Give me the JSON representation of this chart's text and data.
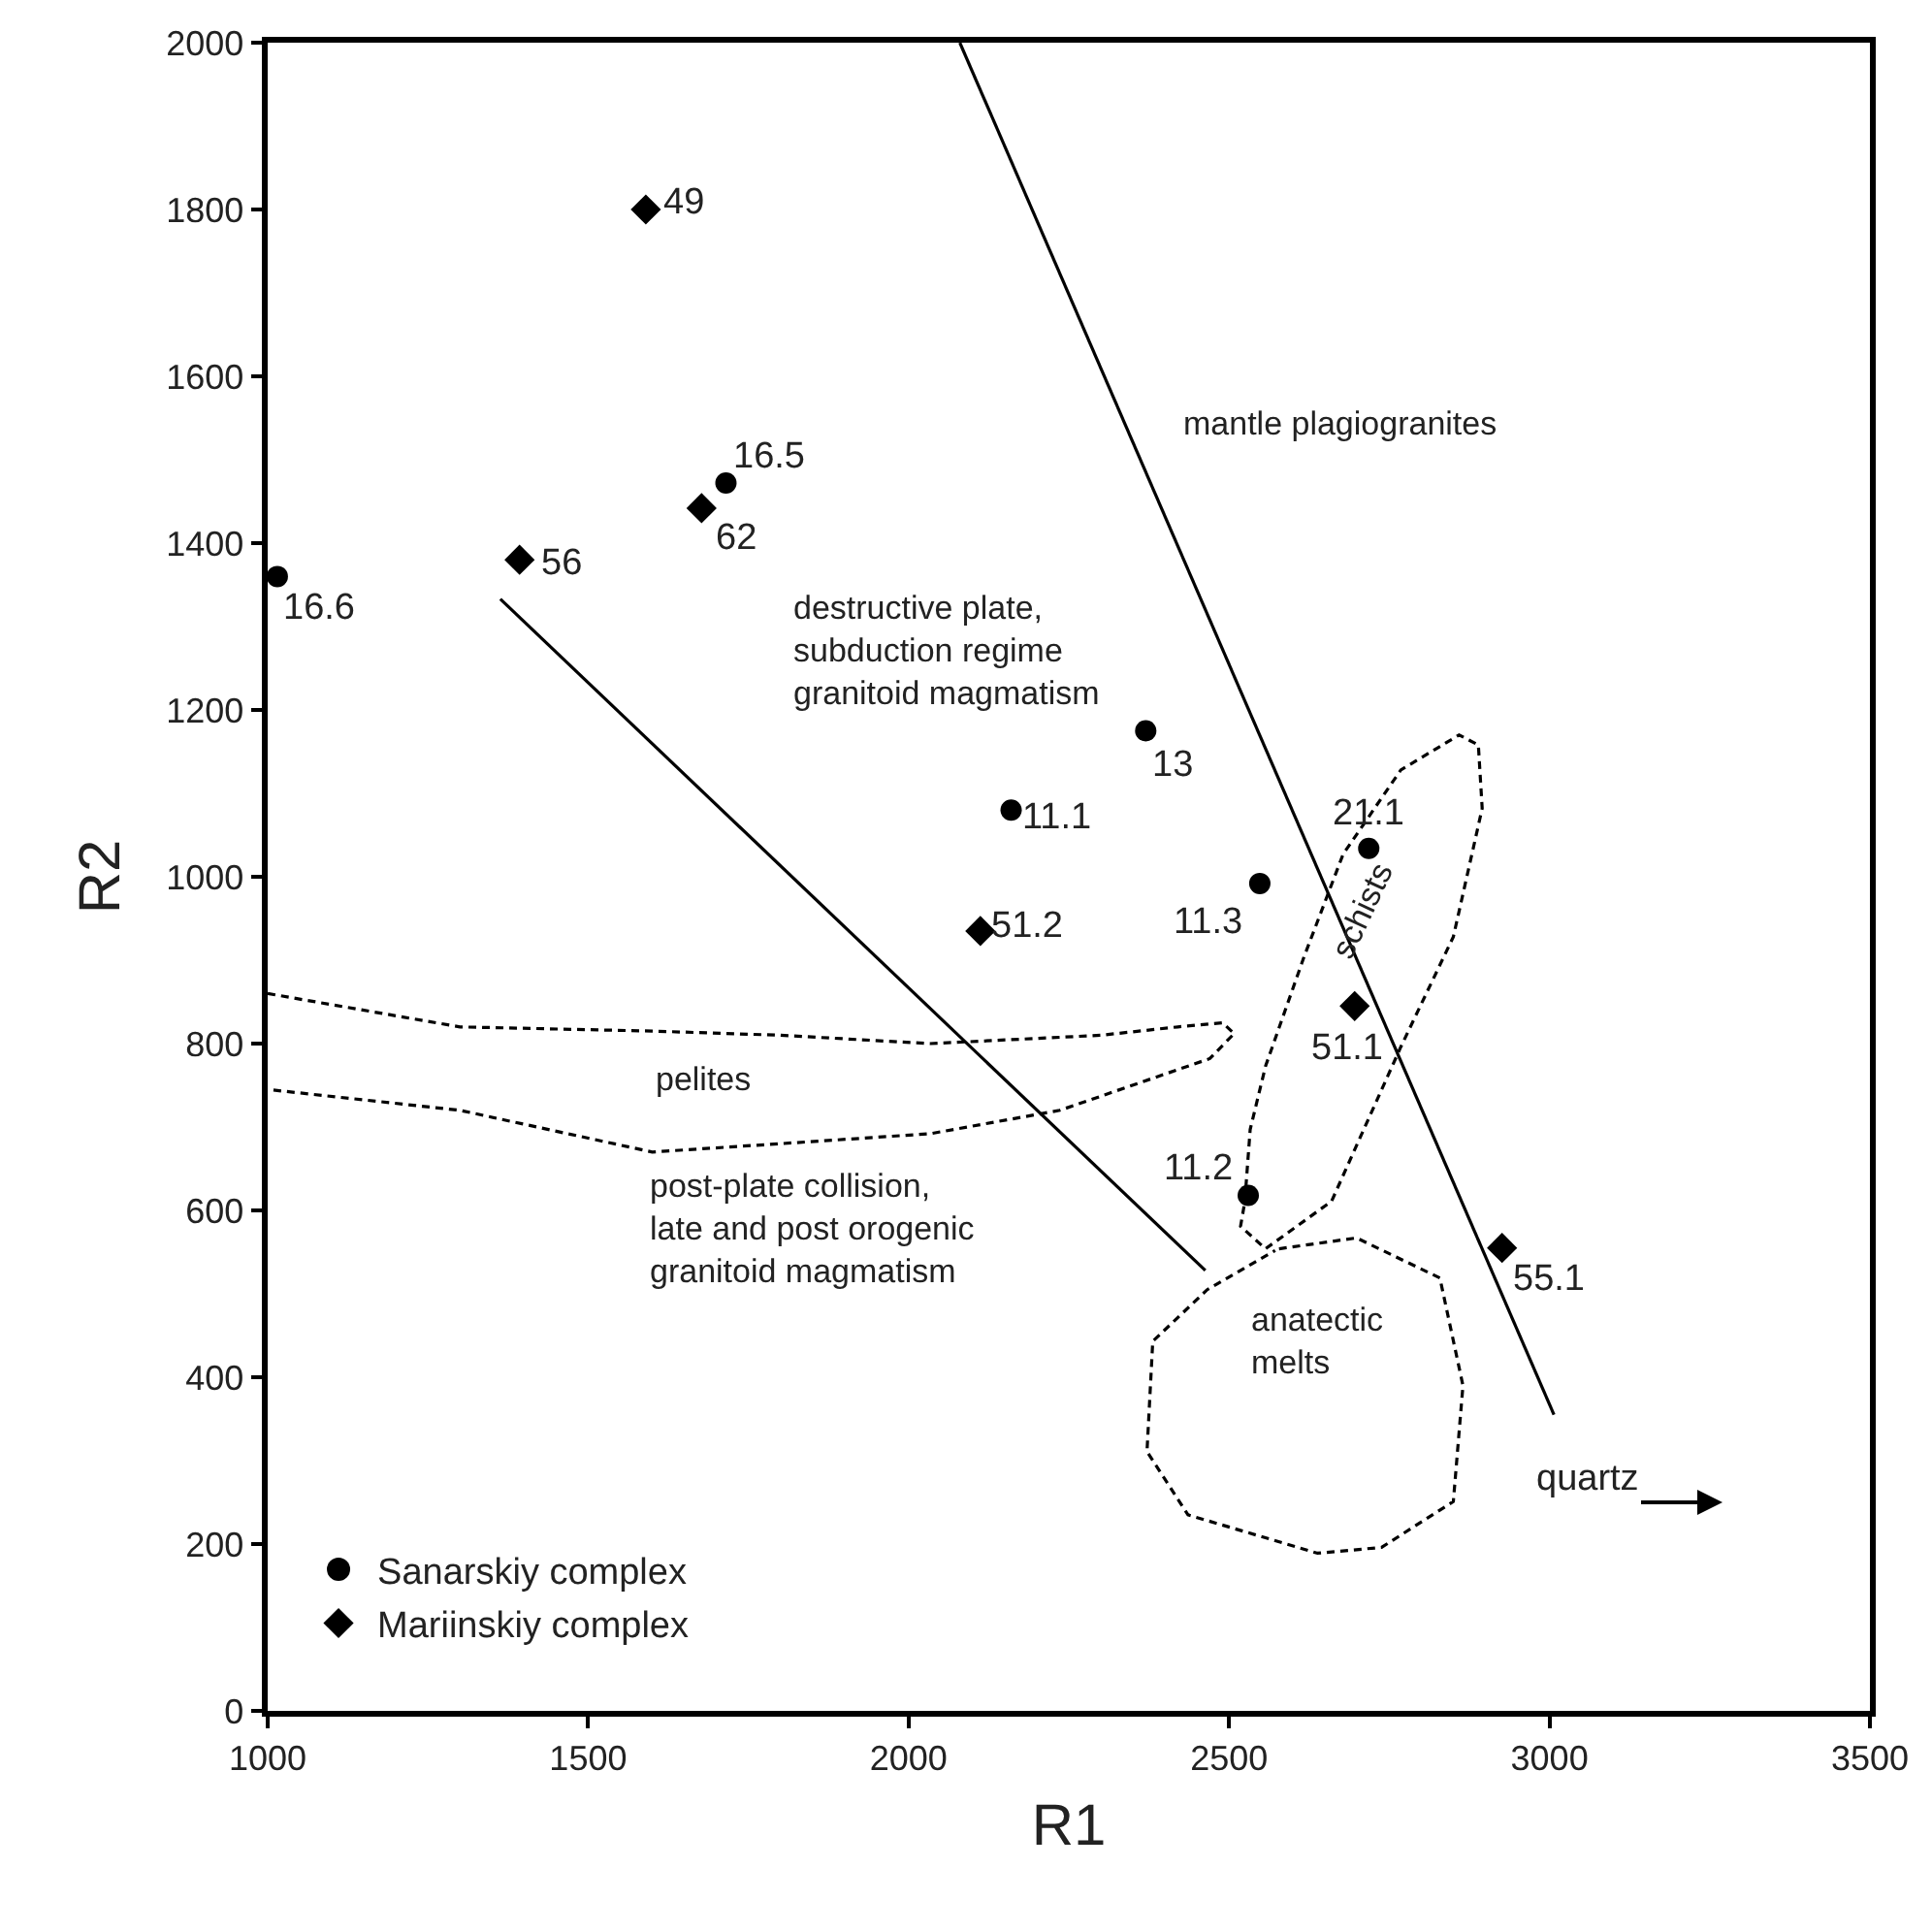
{
  "chart_data": {
    "type": "scatter",
    "xlabel": "R1",
    "ylabel": "R2",
    "xlim": [
      1000,
      3500
    ],
    "xticks": [
      1000,
      1500,
      2000,
      2500,
      3000,
      3500
    ],
    "ylim": [
      0,
      2000
    ],
    "yticks": [
      0,
      200,
      400,
      600,
      800,
      1000,
      1200,
      1400,
      1600,
      1800,
      2000
    ],
    "legend": "bottom left",
    "series": [
      {
        "name": "Sanarskiy complex",
        "color": "#000000",
        "marker": "circle",
        "x": [
          1015,
          1715,
          2370,
          2160,
          2548,
          2718,
          2530
        ],
        "values": [
          1360,
          1472,
          1175,
          1080,
          992,
          1034,
          618
        ]
      },
      {
        "name": "Mariinskiy complex",
        "color": "#000000",
        "marker": "diamond",
        "x": [
          1590,
          1677,
          1393,
          2112,
          2696,
          2926
        ],
        "values": [
          1800,
          1442,
          1380,
          935,
          845,
          555
        ]
      },
      {
        "type": "line",
        "color": "#000000",
        "line_style": "solid",
        "marker": "none",
        "x": [
          2080,
          3007
        ],
        "values": [
          2000,
          355
        ]
      },
      {
        "type": "line",
        "color": "#000000",
        "line_style": "solid",
        "marker": "none",
        "x": [
          1363,
          2463
        ],
        "values": [
          1333,
          528
        ]
      },
      {
        "type": "line",
        "color": "#000000",
        "line_style": "dashed",
        "marker": "none",
        "x": [
          1000,
          1300,
          1600,
          1800,
          2034,
          2300,
          2420,
          2490,
          2508,
          2470,
          2236,
          2034,
          1800,
          1600,
          1300,
          1000
        ],
        "values": [
          860,
          820,
          815,
          810,
          800,
          810,
          820,
          825,
          812,
          782,
          720,
          692,
          680,
          670,
          720,
          745
        ]
      },
      {
        "type": "line",
        "color": "#000000",
        "line_style": "dashed",
        "marker": "none",
        "x": [
          2527,
          2518,
          2557,
          2660,
          2768,
          2850,
          2895,
          2889,
          2859,
          2768,
          2678,
          2617,
          2557,
          2533,
          2526
        ],
        "values": [
          621,
          581,
          554,
          611,
          796,
          928,
          1082,
          1158,
          1170,
          1128,
          1027,
          904,
          773,
          697,
          625
        ]
      },
      {
        "type": "line",
        "color": "#000000",
        "line_style": "dashed",
        "marker": "none",
        "x": [
          2578,
          2699,
          2829,
          2865,
          2850,
          2738,
          2638,
          2436,
          2372,
          2381,
          2466,
          2572
        ],
        "values": [
          554,
          567,
          519,
          390,
          251,
          196,
          189,
          235,
          311,
          443,
          505,
          552
        ]
      }
    ],
    "annotations": [
      "mantle plagiogranites",
      "destructive plate,\nsubduction regime\ngranitoid magmatism",
      "pelites",
      "post-plate collision,\nlate and post orogenic\ngranitoid magmatism",
      "anatectic\nmelts",
      "schists",
      "quartz",
      {
        "text": "16.6",
        "x": 1015,
        "y": 1360
      },
      {
        "text": "16.5",
        "x": 1715,
        "y": 1472
      },
      {
        "text": "13",
        "x": 2370,
        "y": 1175
      },
      {
        "text": "11.1",
        "x": 2160,
        "y": 1080
      },
      {
        "text": "11.3",
        "x": 2548,
        "y": 992
      },
      {
        "text": "21.1",
        "x": 2718,
        "y": 1034
      },
      {
        "text": "11.2",
        "x": 2530,
        "y": 618
      },
      {
        "text": "49",
        "x": 1590,
        "y": 1800
      },
      {
        "text": "62",
        "x": 1677,
        "y": 1442
      },
      {
        "text": "56",
        "x": 1393,
        "y": 1380
      },
      {
        "text": "51.2",
        "x": 2112,
        "y": 935
      },
      {
        "text": "51.1",
        "x": 2696,
        "y": 845
      },
      {
        "text": "55.1",
        "x": 2926,
        "y": 555
      }
    ]
  }
}
